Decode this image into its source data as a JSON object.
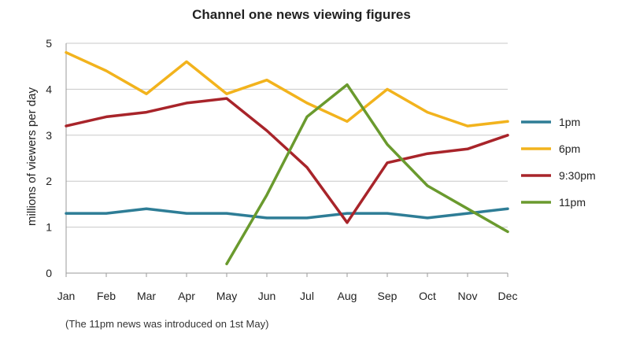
{
  "chart_data": {
    "type": "line",
    "title": "Channel one news viewing figures",
    "xlabel": "",
    "ylabel": "millions of viewers per day",
    "ylim": [
      0,
      5
    ],
    "yticks": [
      0,
      1,
      2,
      3,
      4,
      5
    ],
    "grid": "horizontal",
    "legend_position": "right",
    "categories": [
      "Jan",
      "Feb",
      "Mar",
      "Apr",
      "May",
      "Jun",
      "Jul",
      "Aug",
      "Sep",
      "Oct",
      "Nov",
      "Dec"
    ],
    "series": [
      {
        "name": "1pm",
        "color": "#2e7d96",
        "values": [
          1.3,
          1.3,
          1.4,
          1.3,
          1.3,
          1.2,
          1.2,
          1.3,
          1.3,
          1.2,
          1.3,
          1.4
        ]
      },
      {
        "name": "6pm",
        "color": "#f2b31d",
        "values": [
          4.8,
          4.4,
          3.9,
          4.6,
          3.9,
          4.2,
          3.7,
          3.3,
          4.0,
          3.5,
          3.2,
          3.3
        ]
      },
      {
        "name": "9:30pm",
        "color": "#a8242a",
        "values": [
          3.2,
          3.4,
          3.5,
          3.7,
          3.8,
          3.1,
          2.3,
          1.1,
          2.4,
          2.6,
          2.7,
          3.0
        ]
      },
      {
        "name": "11pm",
        "color": "#6a9a2e",
        "values": [
          null,
          null,
          null,
          null,
          0.2,
          1.7,
          3.4,
          4.1,
          2.8,
          1.9,
          1.4,
          0.9
        ]
      }
    ],
    "footnote": "(The 11pm news was introduced on 1st May)"
  }
}
